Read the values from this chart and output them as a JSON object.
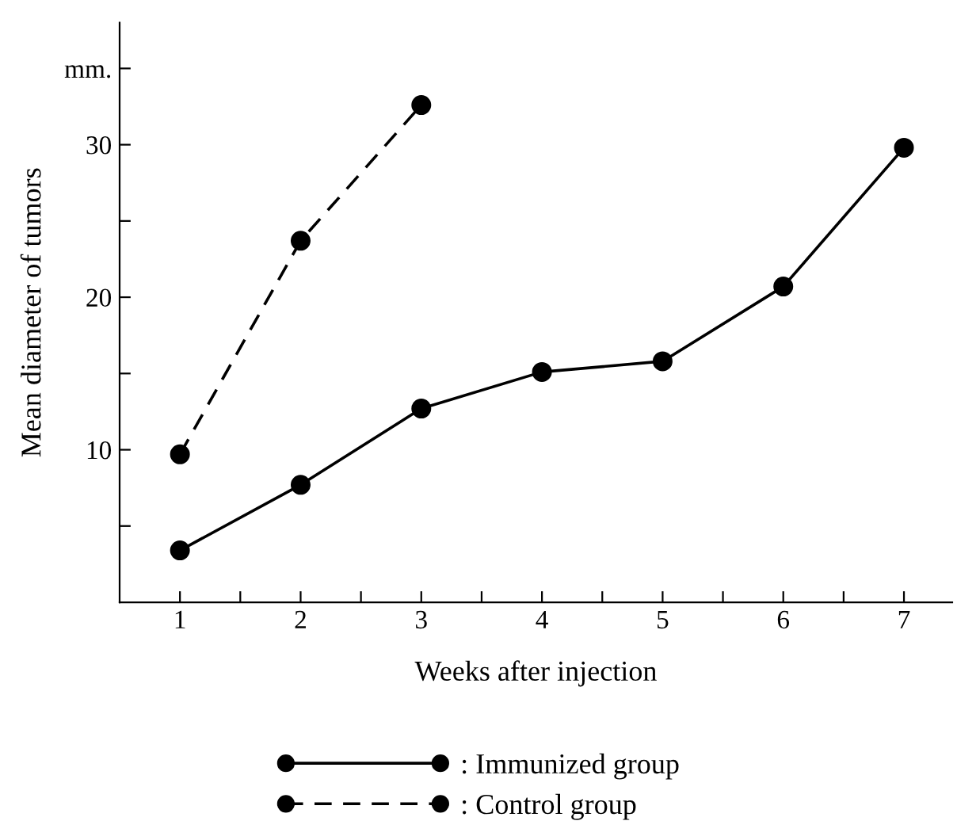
{
  "chart_data": {
    "type": "line",
    "xlabel": "Weeks after injection",
    "ylabel": "Mean diameter of tumors",
    "xlim": [
      0.5,
      7.4
    ],
    "xticks": [
      {
        "value": 1,
        "label": "1"
      },
      {
        "value": 1.5,
        "label": null
      },
      {
        "value": 2,
        "label": "2"
      },
      {
        "value": 2.5,
        "label": null
      },
      {
        "value": 3,
        "label": "3"
      },
      {
        "value": 3.5,
        "label": null
      },
      {
        "value": 4,
        "label": "4"
      },
      {
        "value": 4.5,
        "label": null
      },
      {
        "value": 5,
        "label": "5"
      },
      {
        "value": 5.5,
        "label": null
      },
      {
        "value": 6,
        "label": "6"
      },
      {
        "value": 6.5,
        "label": null
      },
      {
        "value": 7,
        "label": "7"
      }
    ],
    "ylim": [
      0,
      38
    ],
    "yticks": [
      {
        "value": 5,
        "label": null
      },
      10,
      {
        "value": 15,
        "label": null
      },
      20,
      {
        "value": 25,
        "label": null
      },
      30,
      {
        "value": 35,
        "label": "mm."
      }
    ],
    "series": [
      {
        "name": ": Immunized group",
        "color": "#000000",
        "line_style": "solid",
        "x": [
          1,
          2,
          3,
          4,
          5,
          6,
          7
        ],
        "values": [
          3.4,
          7.7,
          12.7,
          15.1,
          15.8,
          20.7,
          29.8
        ]
      },
      {
        "name": ": Control group",
        "color": "#000000",
        "line_style": "dashed",
        "x": [
          1,
          2,
          3
        ],
        "values": [
          9.7,
          23.7,
          32.6
        ]
      }
    ],
    "marker": "circle",
    "grid": false,
    "legend": "bottom"
  }
}
